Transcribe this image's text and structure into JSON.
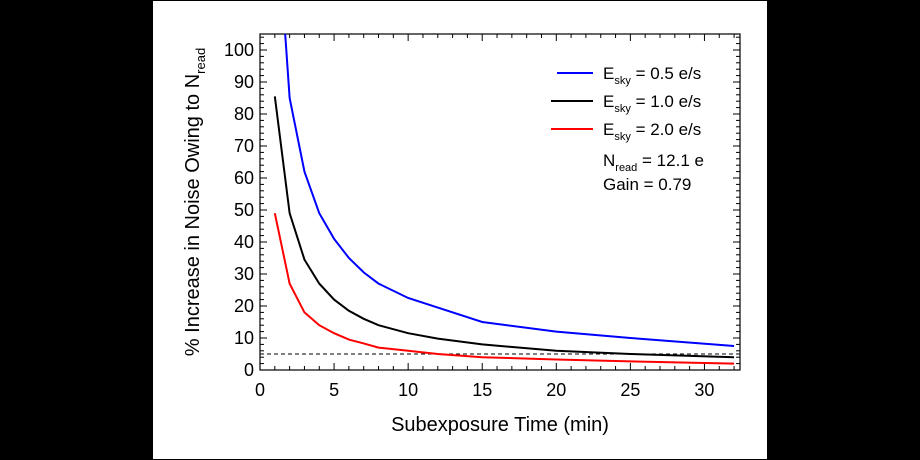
{
  "chart_data": {
    "type": "line",
    "xlabel": "Subexposure Time (min)",
    "ylabel": {
      "main": "% Increase in Noise Owing to N",
      "sub": "read"
    },
    "xlim": [
      0,
      32.4
    ],
    "ylim": [
      0,
      105
    ],
    "xticks": [
      0,
      5,
      10,
      15,
      20,
      25,
      30
    ],
    "yticks": [
      0,
      10,
      20,
      30,
      40,
      50,
      60,
      70,
      80,
      90,
      100
    ],
    "grid": false,
    "legend_position": "top-right",
    "series": [
      {
        "name": {
          "main": "E",
          "sub": "sky",
          "rest": " = 0.5 e/s"
        },
        "color": "#0000ff",
        "x": [
          1.7,
          2,
          3,
          4,
          5,
          6,
          7,
          8,
          10,
          12,
          15,
          20,
          25,
          32
        ],
        "y": [
          105,
          85,
          62,
          49,
          41,
          35,
          30.5,
          27,
          22.5,
          19.5,
          15,
          12,
          10,
          7.5
        ]
      },
      {
        "name": {
          "main": "E",
          "sub": "sky",
          "rest": " = 1.0 e/s"
        },
        "color": "#000000",
        "x": [
          1,
          2,
          3,
          4,
          5,
          6,
          7,
          8,
          10,
          12,
          15,
          20,
          25,
          32
        ],
        "y": [
          85.5,
          49,
          34.5,
          27,
          22,
          18.5,
          16,
          14,
          11.5,
          9.8,
          8,
          6,
          5,
          4
        ]
      },
      {
        "name": {
          "main": "E",
          "sub": "sky",
          "rest": " = 2.0 e/s"
        },
        "color": "#ff0000",
        "x": [
          1,
          2,
          3,
          4,
          5,
          6,
          7,
          8,
          10,
          12,
          15,
          20,
          25,
          32
        ],
        "y": [
          49,
          27,
          18,
          14,
          11.5,
          9.5,
          8.3,
          7,
          6,
          5,
          4,
          3.3,
          2.7,
          2
        ]
      }
    ],
    "reference_line": {
      "y": 5,
      "style": "dashed",
      "color": "#000000"
    },
    "annotations": [
      {
        "main": "N",
        "sub": "read",
        "rest": " = 12.1 e"
      },
      {
        "main": "Gain = 0.79",
        "sub": "",
        "rest": ""
      }
    ]
  }
}
